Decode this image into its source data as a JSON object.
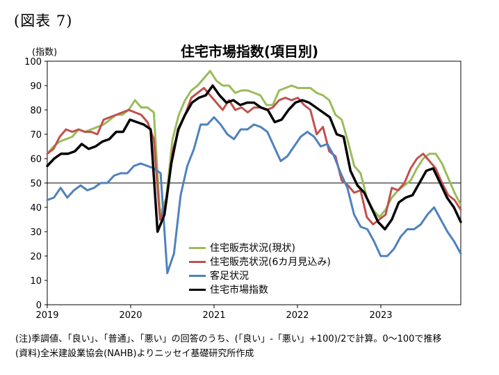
{
  "figure_label": "(図表 7)",
  "unit_label": "(指数)",
  "notes": {
    "line1": "(注)季調値、「良い」、「普通」、「悪い」の回答のうち、(「良い」-「悪い」+100)/2で計算。0～100で推移",
    "line2": "(資料)全米建設業協会(NAHB)よりニッセイ基礎研究所作成"
  },
  "chart_data": {
    "type": "line",
    "title": "住宅市場指数(項目別)",
    "ylabel": "(指数)",
    "ylim": [
      0,
      100
    ],
    "yticks": [
      0,
      10,
      20,
      30,
      40,
      50,
      60,
      70,
      80,
      90,
      100
    ],
    "x_tick_labels": [
      "2019",
      "2020",
      "2021",
      "2022",
      "2023"
    ],
    "x_start": "2019-01",
    "grid": false,
    "reference_line": 50,
    "legend_position": "bottom-center",
    "series": [
      {
        "name": "住宅販売状況(現状)",
        "color": "#9BBB59",
        "width": 3,
        "values": [
          62,
          65,
          67,
          68,
          69,
          72,
          71,
          72,
          73,
          74,
          76,
          78,
          78,
          80,
          84,
          81,
          81,
          79,
          37,
          44,
          68,
          78,
          84,
          88,
          90,
          93,
          96,
          92,
          90,
          90,
          87,
          88,
          88,
          87,
          86,
          82,
          82,
          88,
          89,
          90,
          89,
          89,
          89,
          87,
          86,
          84,
          78,
          76,
          67,
          57,
          54,
          44,
          39,
          36,
          39,
          44,
          47,
          49,
          51,
          56,
          60,
          62,
          62,
          58,
          52,
          46,
          41
        ]
      },
      {
        "name": "住宅販売状況(6カ月見込み)",
        "color": "#C0504D",
        "width": 3,
        "values": [
          62,
          64,
          69,
          72,
          71,
          72,
          71,
          71,
          70,
          76,
          77,
          78,
          79,
          80,
          79,
          78,
          75,
          68,
          35,
          42,
          63,
          72,
          78,
          85,
          87,
          89,
          86,
          83,
          80,
          84,
          80,
          81,
          79,
          81,
          81,
          80,
          81,
          84,
          85,
          84,
          85,
          82,
          80,
          70,
          73,
          63,
          61,
          51,
          49,
          46,
          47,
          36,
          33,
          35,
          37,
          48,
          47,
          50,
          56,
          60,
          62,
          59,
          56,
          50,
          45,
          43,
          39
        ]
      },
      {
        "name": "客足状況",
        "color": "#4F81BD",
        "width": 3,
        "values": [
          43,
          44,
          48,
          44,
          47,
          49,
          47,
          48,
          50,
          50,
          53,
          54,
          54,
          57,
          58,
          57,
          56,
          54,
          13,
          21,
          45,
          57,
          64,
          74,
          74,
          77,
          74,
          70,
          68,
          72,
          72,
          74,
          73,
          71,
          65,
          59,
          61,
          65,
          69,
          71,
          69,
          65,
          66,
          61,
          54,
          48,
          37,
          32,
          31,
          26,
          20,
          20,
          23,
          28,
          31,
          31,
          33,
          37,
          40,
          35,
          30,
          26,
          21
        ]
      },
      {
        "name": "住宅市場指数",
        "color": "#000000",
        "width": 3.5,
        "values": [
          57,
          60,
          62,
          62,
          63,
          66,
          64,
          65,
          67,
          68,
          71,
          71,
          76,
          75,
          74,
          72,
          30,
          37,
          58,
          72,
          78,
          83,
          85,
          86,
          90,
          86,
          83,
          84,
          82,
          83,
          83,
          81,
          80,
          75,
          76,
          80,
          83,
          84,
          83,
          81,
          79,
          77,
          70,
          69,
          55,
          49,
          46,
          40,
          34,
          31,
          35,
          42,
          44,
          45,
          50,
          55,
          56,
          50,
          44,
          40,
          34
        ]
      }
    ]
  }
}
